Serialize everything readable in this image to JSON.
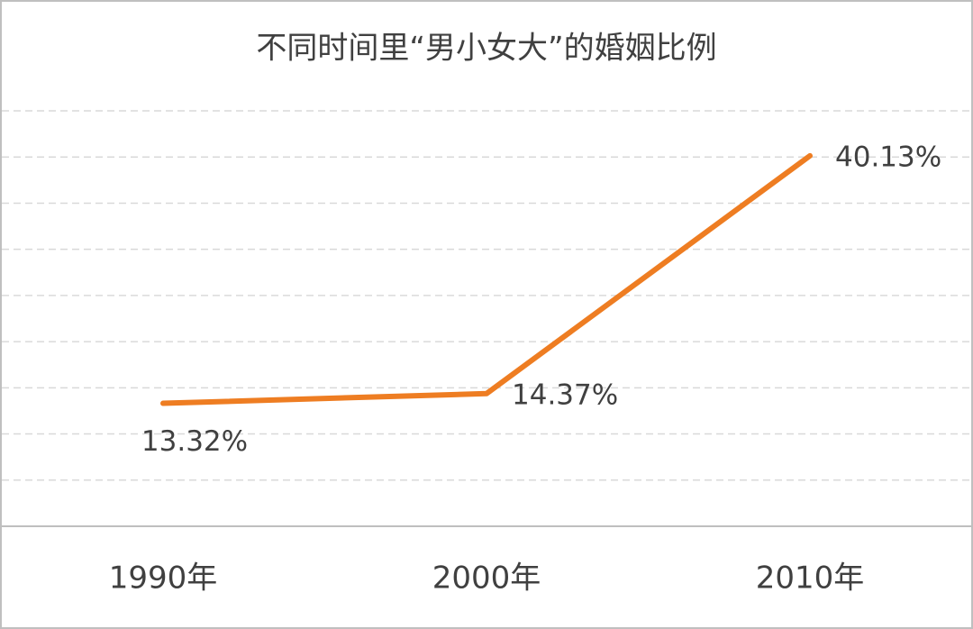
{
  "chart_data": {
    "type": "line",
    "title": "不同时间里“男小女大”的婚姻比例",
    "categories": [
      "1990年",
      "2000年",
      "2010年"
    ],
    "series": [
      {
        "color": "#ee7d22",
        "values": [
          13.32,
          14.37,
          40.13
        ],
        "value_labels": [
          "13.32%",
          "14.37%",
          "40.13%"
        ]
      }
    ],
    "ylim": [
      0,
      45
    ],
    "yticks": [
      0,
      5,
      10,
      15,
      20,
      25,
      30,
      35,
      40,
      45
    ],
    "grid": true
  }
}
